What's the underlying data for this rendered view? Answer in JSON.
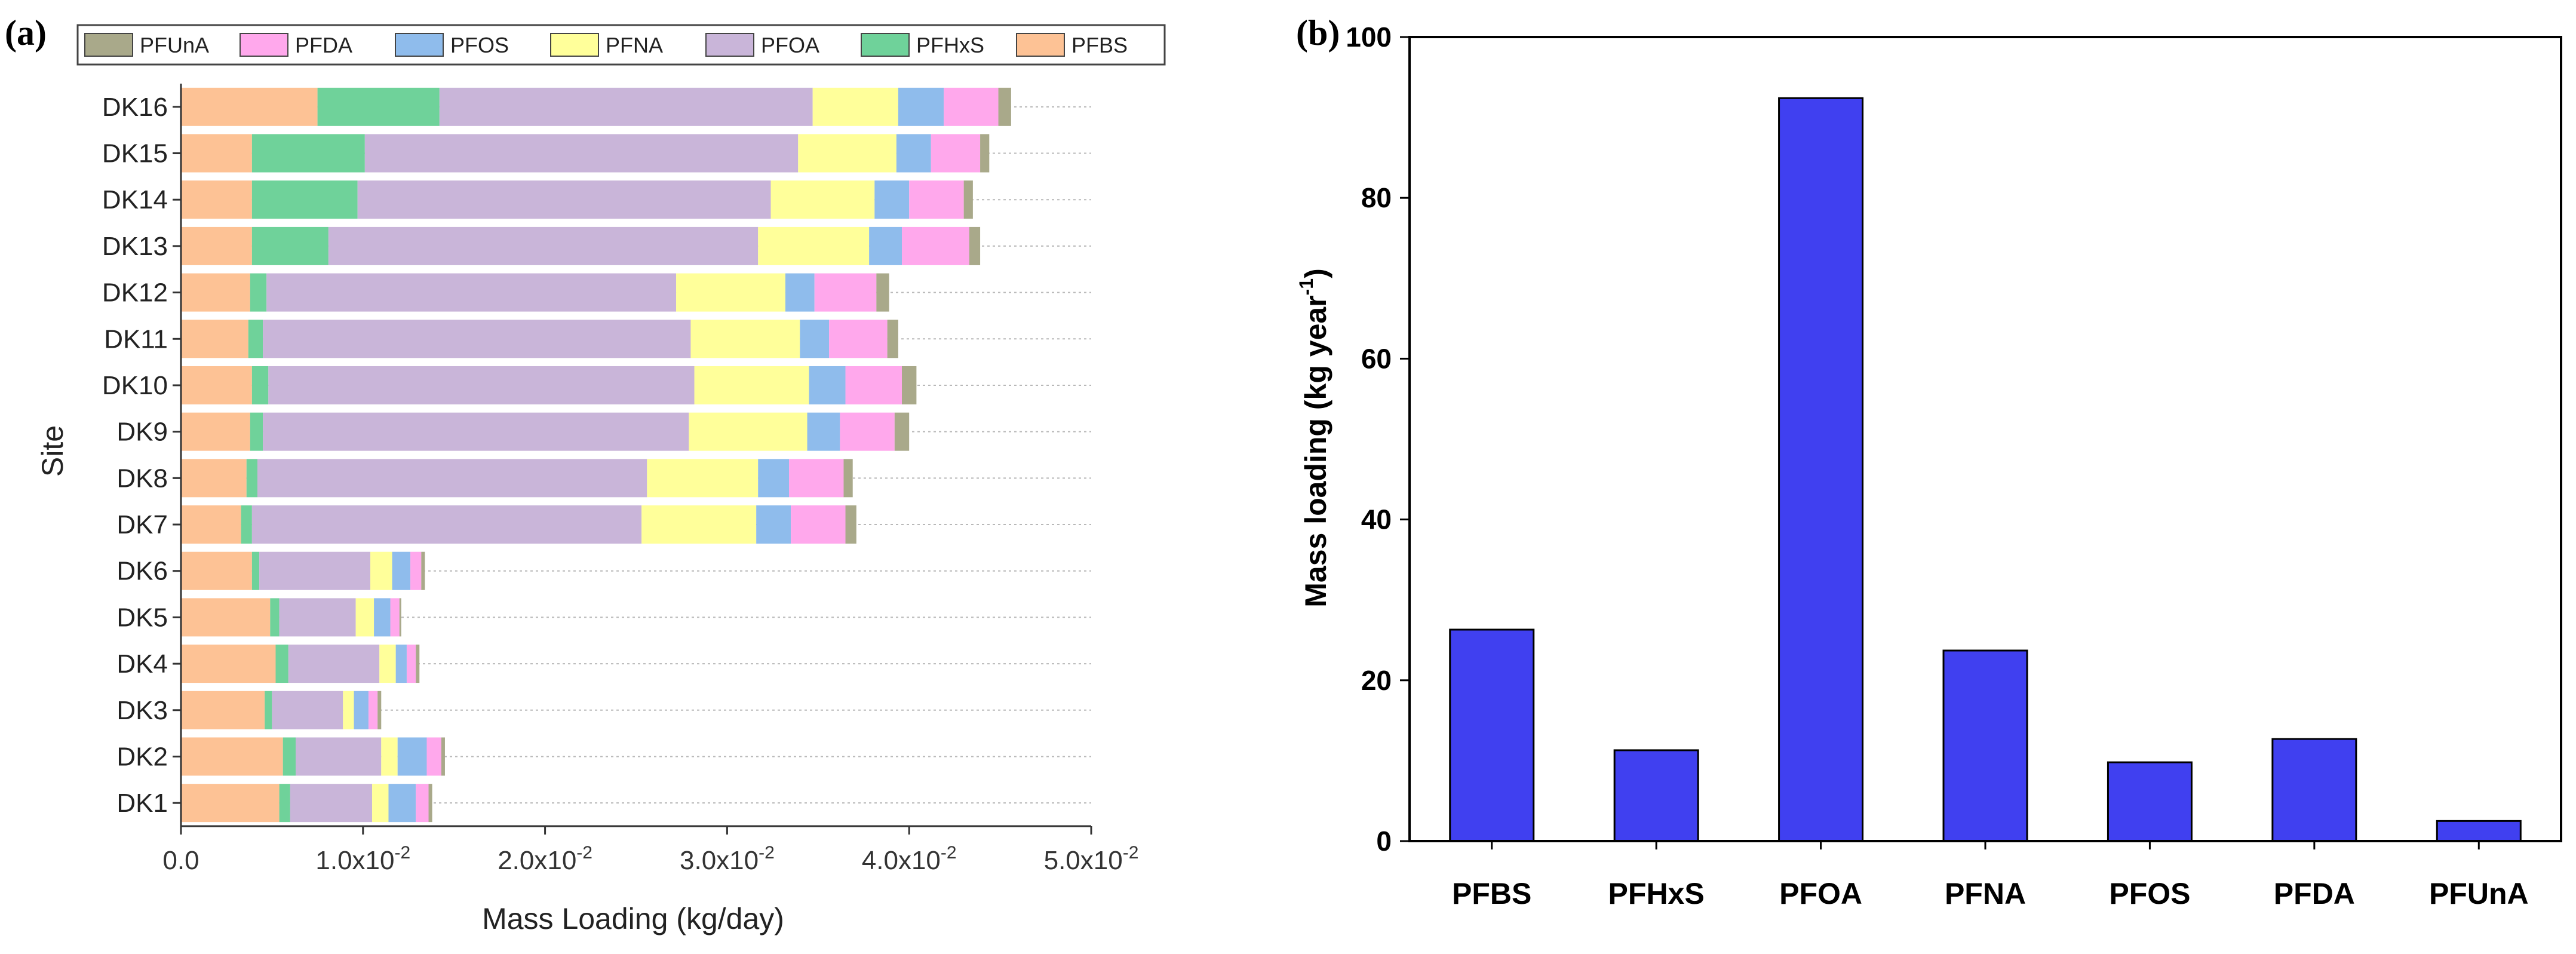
{
  "chart_data": [
    {
      "panel": "(a)",
      "type": "bar",
      "orientation": "horizontal",
      "stacked": true,
      "xlabel": "Mass Loading (kg/day)",
      "ylabel": "Site",
      "xlim": [
        0,
        0.05
      ],
      "xticks": [
        0,
        0.01,
        0.02,
        0.03,
        0.04,
        0.05
      ],
      "xtick_labels": [
        "0.0",
        "1.0x10",
        "2.0x10",
        "3.0x10",
        "4.0x10",
        "5.0x10"
      ],
      "xtick_exponent": "-2",
      "categories": [
        "DK1",
        "DK2",
        "DK3",
        "DK4",
        "DK5",
        "DK6",
        "DK7",
        "DK8",
        "DK9",
        "DK10",
        "DK11",
        "DK12",
        "DK13",
        "DK14",
        "DK15",
        "DK16"
      ],
      "legend": [
        "PFUnA",
        "PFDA",
        "PFOS",
        "PFNA",
        "PFOA",
        "PFHxS",
        "PFBS"
      ],
      "series": [
        {
          "name": "PFBS",
          "color": "#FDC295",
          "values": [
            0.0054,
            0.0056,
            0.0046,
            0.0052,
            0.0049,
            0.0039,
            0.0033,
            0.0036,
            0.0038,
            0.0039,
            0.0037,
            0.0038,
            0.0039,
            0.0039,
            0.0039,
            0.0075
          ]
        },
        {
          "name": "PFHxS",
          "color": "#6FD29A",
          "values": [
            0.0006,
            0.0007,
            0.0004,
            0.0007,
            0.0005,
            0.0004,
            0.0006,
            0.0006,
            0.0007,
            0.0009,
            0.0008,
            0.0009,
            0.0042,
            0.0058,
            0.0062,
            0.0067
          ]
        },
        {
          "name": "PFOA",
          "color": "#C9B5D9",
          "values": [
            0.0045,
            0.0047,
            0.0039,
            0.005,
            0.0042,
            0.0061,
            0.0214,
            0.0214,
            0.0234,
            0.0234,
            0.0235,
            0.0225,
            0.0236,
            0.0227,
            0.0238,
            0.0205
          ]
        },
        {
          "name": "PFNA",
          "color": "#FFFF9A",
          "values": [
            0.0009,
            0.0009,
            0.0006,
            0.0009,
            0.001,
            0.0012,
            0.0063,
            0.0061,
            0.0065,
            0.0063,
            0.006,
            0.006,
            0.0061,
            0.0057,
            0.0054,
            0.0047
          ]
        },
        {
          "name": "PFOS",
          "color": "#8FBCEC",
          "values": [
            0.0015,
            0.0016,
            0.0008,
            0.0006,
            0.0009,
            0.001,
            0.0019,
            0.0017,
            0.0018,
            0.002,
            0.0016,
            0.0016,
            0.0018,
            0.0019,
            0.0019,
            0.0025
          ]
        },
        {
          "name": "PFDA",
          "color": "#FFA8EC",
          "values": [
            0.0007,
            0.0008,
            0.0005,
            0.0005,
            0.0005,
            0.0006,
            0.003,
            0.003,
            0.003,
            0.0031,
            0.0032,
            0.0034,
            0.0037,
            0.003,
            0.0027,
            0.003
          ]
        },
        {
          "name": "PFUnA",
          "color": "#A9A98A",
          "values": [
            0.0002,
            0.0002,
            0.0002,
            0.0002,
            0.0001,
            0.0002,
            0.0006,
            0.0005,
            0.0008,
            0.0008,
            0.0006,
            0.0007,
            0.0006,
            0.0005,
            0.0005,
            0.0007
          ]
        }
      ]
    },
    {
      "panel": "(b)",
      "type": "bar",
      "orientation": "vertical",
      "ylabel": "Mass loading (kg year",
      "ylabel_superscript": "-1",
      "ylabel_suffix": ")",
      "ylim": [
        0,
        100
      ],
      "yticks": [
        0,
        20,
        40,
        60,
        80,
        100
      ],
      "bar_color": "#4040F0",
      "categories": [
        "PFBS",
        "PFHxS",
        "PFOA",
        "PFNA",
        "PFOS",
        "PFDA",
        "PFUnA"
      ],
      "values": [
        26.3,
        11.3,
        92.4,
        23.7,
        9.8,
        12.7,
        2.5
      ]
    }
  ]
}
